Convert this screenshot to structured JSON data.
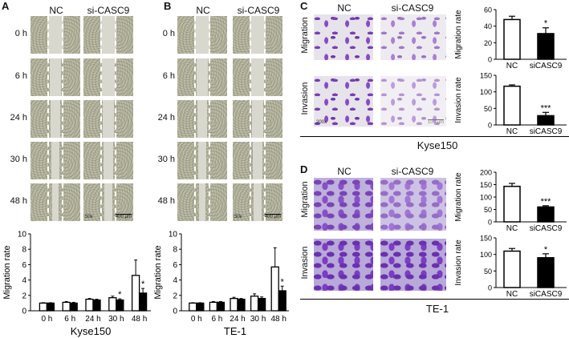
{
  "panel_letters": [
    "A",
    "B",
    "C",
    "D"
  ],
  "wound": {
    "col_nc": "NC",
    "col_si": "si-CASC9",
    "times": [
      "0 h",
      "6 h",
      "24 h",
      "30 h",
      "48 h"
    ],
    "magnification": "50x",
    "scale": "400 μm"
  },
  "transwell": {
    "col_nc": "NC",
    "col_si": "si-CASC9",
    "rows": [
      "Migration",
      "Invasion"
    ],
    "magnification": "200x",
    "scale": "100 μm",
    "kyse_label": "Kyse150",
    "te_label": "TE-1"
  },
  "chart_data": [
    {
      "id": "A",
      "type": "bar",
      "categories": [
        "0 h",
        "6 h",
        "24 h",
        "30 h",
        "48 h"
      ],
      "series": [
        {
          "values": [
            1.0,
            1.1,
            1.5,
            1.7,
            4.6
          ],
          "errors": [
            0.05,
            0.1,
            0.1,
            0.2,
            2.0
          ]
        },
        {
          "values": [
            1.0,
            1.0,
            1.4,
            1.4,
            2.3
          ],
          "errors": [
            0.05,
            0.1,
            0.1,
            0.15,
            0.6
          ]
        }
      ],
      "colors": [
        "#ffffff",
        "#000000"
      ],
      "significance": [
        "",
        "",
        "",
        "*",
        "*"
      ],
      "ylabel": "Migration rate",
      "xlabel": "Kyse150",
      "ylim": [
        0,
        10
      ],
      "yticks": [
        0,
        2,
        4,
        6,
        8,
        10
      ]
    },
    {
      "id": "B",
      "type": "bar",
      "categories": [
        "0 h",
        "6 h",
        "24 h",
        "30 h",
        "48 h"
      ],
      "series": [
        {
          "values": [
            1.0,
            1.1,
            1.6,
            1.9,
            5.7
          ],
          "errors": [
            0.05,
            0.1,
            0.15,
            0.3,
            2.5
          ]
        },
        {
          "values": [
            1.0,
            1.1,
            1.5,
            1.6,
            2.6
          ],
          "errors": [
            0.05,
            0.1,
            0.1,
            0.2,
            0.6
          ]
        }
      ],
      "colors": [
        "#ffffff",
        "#000000"
      ],
      "significance": [
        "",
        "",
        "",
        "",
        "*"
      ],
      "ylabel": "Migration rate",
      "xlabel": "TE-1",
      "ylim": [
        0,
        10
      ],
      "yticks": [
        0,
        2,
        4,
        6,
        8,
        10
      ]
    },
    {
      "id": "C-migration",
      "type": "bar",
      "categories": [
        "NC",
        "siCASC9"
      ],
      "values": [
        48,
        31
      ],
      "errors": [
        4,
        7
      ],
      "colors": [
        "#ffffff",
        "#000000"
      ],
      "significance": [
        "",
        "*"
      ],
      "ylabel": "Migration rate",
      "ylim": [
        0,
        60
      ],
      "yticks": [
        0,
        20,
        40,
        60
      ]
    },
    {
      "id": "C-invasion",
      "type": "bar",
      "categories": [
        "NC",
        "siCASC9"
      ],
      "values": [
        117,
        28
      ],
      "errors": [
        4,
        10
      ],
      "colors": [
        "#ffffff",
        "#000000"
      ],
      "significance": [
        "",
        "***"
      ],
      "ylabel": "Invasion rate",
      "ylim": [
        0,
        150
      ],
      "yticks": [
        0,
        50,
        100,
        150
      ]
    },
    {
      "id": "D-migration",
      "type": "bar",
      "categories": [
        "NC",
        "siCASC9"
      ],
      "values": [
        143,
        60
      ],
      "errors": [
        12,
        5
      ],
      "colors": [
        "#ffffff",
        "#000000"
      ],
      "significance": [
        "",
        "***"
      ],
      "ylabel": "Migration rate",
      "ylim": [
        0,
        200
      ],
      "yticks": [
        0,
        50,
        100,
        150,
        200
      ]
    },
    {
      "id": "D-invasion",
      "type": "bar",
      "categories": [
        "NC",
        "siCASC9"
      ],
      "values": [
        110,
        90
      ],
      "errors": [
        8,
        12
      ],
      "colors": [
        "#ffffff",
        "#000000"
      ],
      "significance": [
        "",
        "*"
      ],
      "ylabel": "Invasion rate",
      "ylim": [
        0,
        150
      ],
      "yticks": [
        0,
        50,
        100,
        150
      ]
    }
  ]
}
